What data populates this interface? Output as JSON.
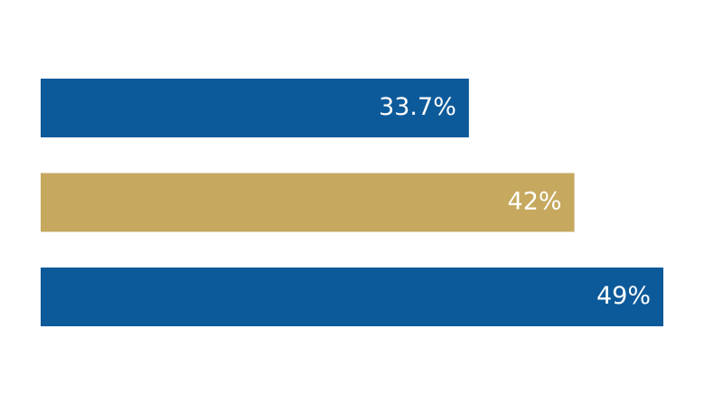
{
  "chart_data": {
    "type": "bar",
    "orientation": "horizontal",
    "values": [
      33.7,
      42,
      49
    ],
    "value_labels": [
      "33.7%",
      "42%",
      "49%"
    ],
    "colors": [
      "#0d5a9a",
      "#c6a95f",
      "#0d5a9a"
    ]
  }
}
